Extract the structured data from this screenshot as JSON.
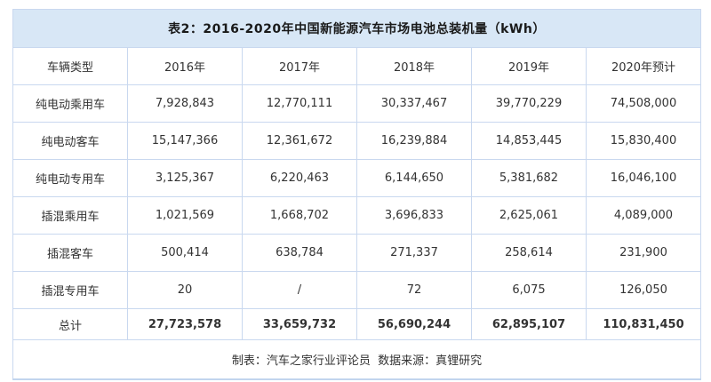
{
  "chart_data": {
    "type": "table",
    "title": "表2：2016-2020年中国新能源汽车市场电池总装机量（kWh）",
    "columns": [
      "车辆类型",
      "2016年",
      "2017年",
      "2018年",
      "2019年",
      "2020年预计"
    ],
    "rows": [
      {
        "label": "纯电动乘用车",
        "values": [
          "7,928,843",
          "12,770,111",
          "30,337,467",
          "39,770,229",
          "74,508,000"
        ]
      },
      {
        "label": "纯电动客车",
        "values": [
          "15,147,366",
          "12,361,672",
          "16,239,884",
          "14,853,445",
          "15,830,400"
        ]
      },
      {
        "label": "纯电动专用车",
        "values": [
          "3,125,367",
          "6,220,463",
          "6,144,650",
          "5,381,682",
          "16,046,100"
        ]
      },
      {
        "label": "插混乘用车",
        "values": [
          "1,021,569",
          "1,668,702",
          "3,696,833",
          "2,625,061",
          "4,089,000"
        ]
      },
      {
        "label": "插混客车",
        "values": [
          "500,414",
          "638,784",
          "271,337",
          "258,614",
          "231,900"
        ]
      },
      {
        "label": "插混专用车",
        "values": [
          "20",
          "/",
          "72",
          "6,075",
          "126,050"
        ]
      }
    ],
    "total": {
      "label": "总计",
      "values": [
        "27,723,578",
        "33,659,732",
        "56,690,244",
        "62,895,107",
        "110,831,450"
      ]
    },
    "footer": "制表：汽车之家行业评论员  数据来源：真锂研究"
  },
  "colors": {
    "title_bg": "#d8e7f6",
    "border": "#c2d5ee",
    "text": "#333333",
    "title_text": "#1a1a1a",
    "page_bg": "#ffffff"
  }
}
